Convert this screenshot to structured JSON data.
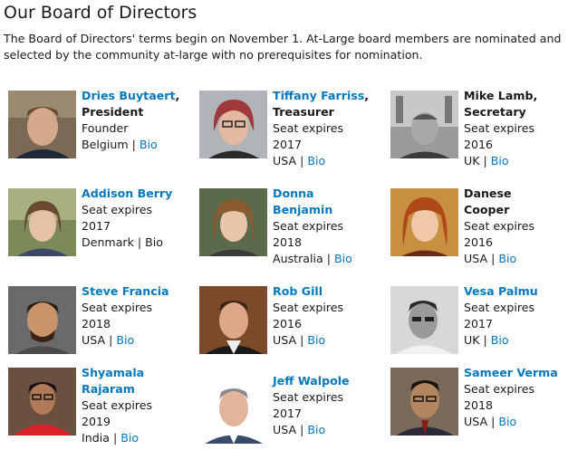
{
  "page": {
    "title": "Our Board of Directors",
    "intro": "The Board of Directors' terms begin on November 1. At-Large board members are nominated and selected by the community at-large with no prerequisites for nomination."
  },
  "members": [
    {
      "name_lines": [
        "Dries Buytaert",
        ""
      ],
      "name_suffix": ",",
      "role": "President",
      "detail_lines": [
        "Founder"
      ],
      "country": "Belgium",
      "separator": "|",
      "bio": "Bio"
    },
    {
      "name_lines": [
        "Tiffany Farriss",
        ""
      ],
      "name_suffix": ",",
      "role": "Treasurer",
      "detail_lines": [
        "Seat expires",
        "2017"
      ],
      "country": "USA",
      "separator": "|",
      "bio": "Bio"
    },
    {
      "name_lines": [
        "Mike Lamb,",
        ""
      ],
      "name_suffix": "",
      "role": "Secretary",
      "detail_lines": [
        "Seat expires",
        "2016"
      ],
      "country": "UK",
      "separator": "|",
      "bio": "Bio"
    },
    {
      "name_lines": [
        "Addison Berry",
        ""
      ],
      "name_suffix": "",
      "role": "",
      "detail_lines": [
        "Seat expires",
        "2017"
      ],
      "country": "Denmark",
      "separator": "|",
      "bio": "Bio"
    },
    {
      "name_lines": [
        "Donna",
        "Benjamin"
      ],
      "name_suffix": "",
      "role": "",
      "detail_lines": [
        "Seat expires",
        "2018"
      ],
      "country": "Australia",
      "separator": "|",
      "bio": "Bio"
    },
    {
      "name_lines": [
        "Danese",
        "Cooper"
      ],
      "name_suffix": "",
      "role": "",
      "detail_lines": [
        "Seat expires",
        "2016"
      ],
      "country": "USA",
      "separator": "|",
      "bio": "Bio"
    },
    {
      "name_lines": [
        "Steve Francia",
        ""
      ],
      "name_suffix": "",
      "role": "",
      "detail_lines": [
        "Seat expires",
        "2018"
      ],
      "country": "USA",
      "separator": "|",
      "bio": "Bio"
    },
    {
      "name_lines": [
        "Rob Gill",
        ""
      ],
      "name_suffix": "",
      "role": "",
      "detail_lines": [
        "Seat expires",
        "2016"
      ],
      "country": "USA",
      "separator": "|",
      "bio": "Bio"
    },
    {
      "name_lines": [
        "Vesa Palmu",
        ""
      ],
      "name_suffix": "",
      "role": "",
      "detail_lines": [
        "Seat expires",
        "2017"
      ],
      "country": "UK",
      "separator": "|",
      "bio": "Bio"
    },
    {
      "name_lines": [
        "Shyamala",
        "Rajaram"
      ],
      "name_suffix": "",
      "role": "",
      "detail_lines": [
        "Seat expires",
        "2019"
      ],
      "country": "India",
      "separator": "|",
      "bio": "Bio"
    },
    {
      "name_lines": [
        "Jeff Walpole",
        ""
      ],
      "name_suffix": "",
      "role": "",
      "detail_lines": [
        "Seat expires",
        "2017"
      ],
      "country": "USA",
      "separator": "|",
      "bio": "Bio"
    },
    {
      "name_lines": [
        "Sameer Verma",
        ""
      ],
      "name_suffix": "",
      "role": "",
      "detail_lines": [
        "Seat expires",
        "2018"
      ],
      "country": "USA",
      "separator": "|",
      "bio": "Bio"
    }
  ],
  "colors": {
    "link": "#0678be",
    "text": "#1a1a1a"
  }
}
